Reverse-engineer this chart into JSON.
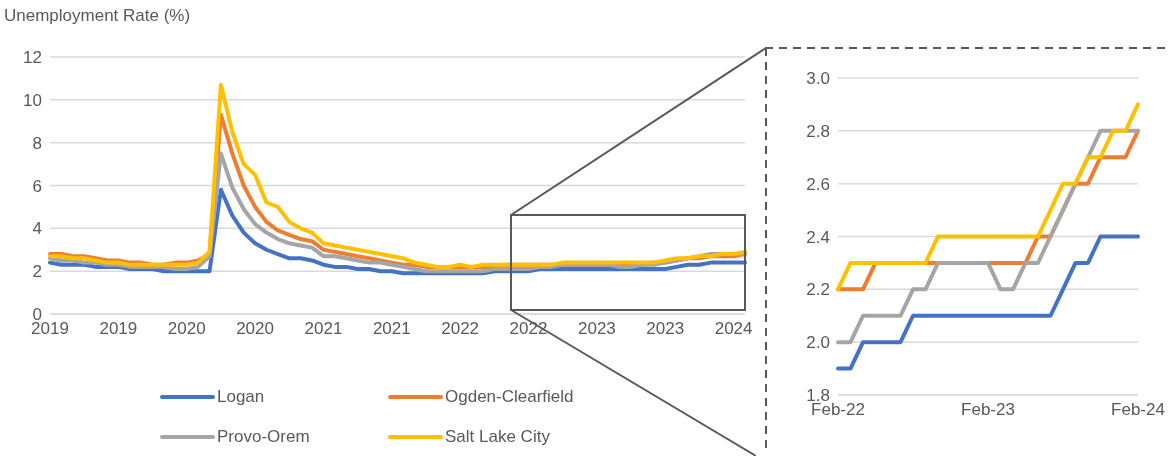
{
  "chart_data": [
    {
      "type": "line",
      "ylabel": "Unemployment Rate (%)",
      "categories": [
        "2019",
        null,
        null,
        null,
        null,
        null,
        "2019",
        null,
        null,
        null,
        null,
        null,
        "2020",
        null,
        null,
        null,
        null,
        null,
        "2020",
        null,
        null,
        null,
        null,
        null,
        "2021",
        null,
        null,
        null,
        null,
        null,
        "2021",
        null,
        null,
        null,
        null,
        null,
        "2022",
        null,
        null,
        null,
        null,
        null,
        "2022",
        null,
        null,
        null,
        null,
        null,
        "2023",
        null,
        null,
        null,
        null,
        null,
        "2023",
        null,
        null,
        null,
        null,
        null,
        "2024",
        null
      ],
      "series": [
        {
          "name": "Logan",
          "color": "#4472c4",
          "values": [
            2.4,
            2.3,
            2.3,
            2.3,
            2.2,
            2.2,
            2.2,
            2.1,
            2.1,
            2.1,
            2.0,
            2.0,
            2.0,
            2.0,
            2.0,
            5.8,
            4.6,
            3.8,
            3.3,
            3.0,
            2.8,
            2.6,
            2.6,
            2.5,
            2.3,
            2.2,
            2.2,
            2.1,
            2.1,
            2.0,
            2.0,
            1.9,
            1.9,
            1.9,
            1.9,
            1.9,
            1.9,
            1.9,
            1.9,
            2.0,
            2.0,
            2.0,
            2.0,
            2.1,
            2.1,
            2.1,
            2.1,
            2.1,
            2.1,
            2.1,
            2.1,
            2.1,
            2.1,
            2.1,
            2.1,
            2.2,
            2.3,
            2.3,
            2.4,
            2.4,
            2.4,
            2.4
          ]
        },
        {
          "name": "Ogden-Clearfield",
          "color": "#ed7d31",
          "values": [
            2.8,
            2.8,
            2.7,
            2.7,
            2.6,
            2.5,
            2.5,
            2.4,
            2.4,
            2.3,
            2.3,
            2.4,
            2.4,
            2.5,
            2.8,
            9.3,
            7.5,
            6.0,
            5.0,
            4.3,
            3.9,
            3.7,
            3.5,
            3.4,
            3.0,
            2.9,
            2.8,
            2.7,
            2.6,
            2.5,
            2.4,
            2.3,
            2.3,
            2.2,
            2.2,
            2.2,
            2.2,
            2.2,
            2.2,
            2.2,
            2.3,
            2.3,
            2.3,
            2.3,
            2.3,
            2.3,
            2.3,
            2.3,
            2.3,
            2.3,
            2.3,
            2.3,
            2.3,
            2.4,
            2.4,
            2.5,
            2.6,
            2.6,
            2.7,
            2.7,
            2.7,
            2.8
          ]
        },
        {
          "name": "Provo-Orem",
          "color": "#a5a5a5",
          "values": [
            2.6,
            2.5,
            2.5,
            2.4,
            2.4,
            2.3,
            2.3,
            2.2,
            2.2,
            2.2,
            2.2,
            2.1,
            2.1,
            2.2,
            2.7,
            7.5,
            5.9,
            4.9,
            4.2,
            3.8,
            3.5,
            3.3,
            3.2,
            3.1,
            2.7,
            2.7,
            2.6,
            2.5,
            2.4,
            2.4,
            2.3,
            2.2,
            2.1,
            2.0,
            2.0,
            2.0,
            2.0,
            2.0,
            2.0,
            2.1,
            2.1,
            2.1,
            2.1,
            2.2,
            2.2,
            2.3,
            2.3,
            2.3,
            2.3,
            2.3,
            2.2,
            2.2,
            2.3,
            2.3,
            2.4,
            2.5,
            2.6,
            2.7,
            2.8,
            2.8,
            2.8,
            2.8
          ]
        },
        {
          "name": "Salt Lake City",
          "color": "#ffc000",
          "values": [
            2.7,
            2.7,
            2.6,
            2.6,
            2.5,
            2.4,
            2.4,
            2.3,
            2.3,
            2.3,
            2.3,
            2.3,
            2.3,
            2.4,
            2.9,
            10.7,
            8.5,
            7.0,
            6.5,
            5.2,
            5.0,
            4.3,
            4.0,
            3.8,
            3.3,
            3.2,
            3.1,
            3.0,
            2.9,
            2.8,
            2.7,
            2.6,
            2.4,
            2.3,
            2.2,
            2.2,
            2.3,
            2.2,
            2.3,
            2.3,
            2.3,
            2.3,
            2.3,
            2.3,
            2.3,
            2.4,
            2.4,
            2.4,
            2.4,
            2.4,
            2.4,
            2.4,
            2.4,
            2.4,
            2.5,
            2.6,
            2.6,
            2.7,
            2.7,
            2.8,
            2.8,
            2.9
          ]
        }
      ],
      "ylim": [
        0,
        12
      ],
      "yticks": [
        0,
        2,
        4,
        6,
        8,
        10,
        12
      ],
      "grid": "y",
      "legend": "bottom"
    },
    {
      "type": "line",
      "categories": [
        "Feb-22",
        null,
        null,
        null,
        null,
        null,
        null,
        null,
        null,
        null,
        null,
        null,
        "Feb-23",
        null,
        null,
        null,
        null,
        null,
        null,
        null,
        null,
        null,
        null,
        null,
        "Feb-24"
      ],
      "series": [
        {
          "color": "#4472c4",
          "values": [
            1.9,
            1.9,
            2.0,
            2.0,
            2.0,
            2.0,
            2.1,
            2.1,
            2.1,
            2.1,
            2.1,
            2.1,
            2.1,
            2.1,
            2.1,
            2.1,
            2.1,
            2.1,
            2.2,
            2.3,
            2.3,
            2.4,
            2.4,
            2.4,
            2.4
          ]
        },
        {
          "color": "#ed7d31",
          "values": [
            2.2,
            2.2,
            2.2,
            2.3,
            2.3,
            2.3,
            2.3,
            2.3,
            2.3,
            null,
            null,
            null,
            2.3,
            2.3,
            2.3,
            2.3,
            2.4,
            2.4,
            2.5,
            2.6,
            2.6,
            2.7,
            2.7,
            2.7,
            2.8
          ]
        },
        {
          "color": "#a5a5a5",
          "values": [
            2.0,
            2.0,
            2.1,
            2.1,
            2.1,
            2.1,
            2.2,
            2.2,
            2.3,
            2.3,
            2.3,
            2.3,
            2.3,
            2.2,
            2.2,
            2.3,
            2.3,
            2.4,
            2.5,
            2.6,
            2.7,
            2.8,
            2.8,
            2.8,
            2.8
          ]
        },
        {
          "color": "#ffc000",
          "values": [
            2.2,
            2.3,
            2.3,
            2.3,
            2.3,
            2.3,
            2.3,
            2.3,
            2.4,
            2.4,
            2.4,
            2.4,
            2.4,
            2.4,
            2.4,
            2.4,
            2.4,
            2.5,
            2.6,
            2.6,
            2.7,
            2.7,
            2.8,
            2.8,
            2.9
          ]
        }
      ],
      "ylim": [
        1.8,
        3.0
      ],
      "yticks": [
        1.8,
        {
          "value": 2.0,
          "label": "2.0"
        },
        2.2,
        2.4,
        2.6,
        2.8,
        {
          "value": 3.0,
          "label": "3.0"
        }
      ],
      "grid": "y"
    }
  ]
}
